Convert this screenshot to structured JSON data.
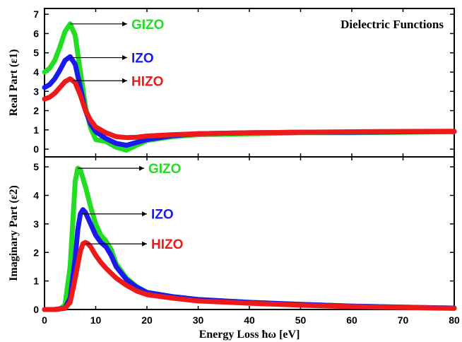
{
  "chart_data": [
    {
      "type": "line",
      "title": "Dielectric Functions",
      "ylabel": "Real Part (ε1)",
      "xlim": [
        0,
        80
      ],
      "ylim": [
        -0.4,
        7.3
      ],
      "yticks": [
        0,
        1,
        2,
        3,
        4,
        5,
        6,
        7
      ],
      "series": [
        {
          "name": "GIZO",
          "color": "#22dd22",
          "x": [
            0,
            1,
            2,
            3,
            4,
            5,
            6,
            7,
            8,
            9,
            10,
            12,
            14,
            16,
            18,
            20,
            25,
            30,
            40,
            50,
            60,
            70,
            80
          ],
          "y": [
            4.0,
            4.2,
            4.6,
            5.3,
            6.1,
            6.5,
            5.9,
            4.0,
            2.2,
            1.1,
            0.5,
            0.4,
            0.1,
            -0.05,
            0.2,
            0.45,
            0.65,
            0.75,
            0.8,
            0.85,
            0.85,
            0.88,
            0.9
          ]
        },
        {
          "name": "IZO",
          "color": "#1a1aee",
          "x": [
            0,
            1,
            2,
            3,
            4,
            5,
            6,
            7,
            8,
            9,
            10,
            12,
            14,
            16,
            18,
            20,
            25,
            30,
            40,
            50,
            60,
            70,
            80
          ],
          "y": [
            3.2,
            3.35,
            3.65,
            4.1,
            4.6,
            4.8,
            4.4,
            3.2,
            2.0,
            1.3,
            0.9,
            0.55,
            0.3,
            0.2,
            0.35,
            0.5,
            0.7,
            0.8,
            0.85,
            0.88,
            0.88,
            0.9,
            0.92
          ]
        },
        {
          "name": "HIZO",
          "color": "#ee1a1a",
          "x": [
            0,
            1,
            2,
            3,
            4,
            5,
            6,
            7,
            8,
            9,
            10,
            12,
            14,
            16,
            18,
            20,
            25,
            30,
            40,
            50,
            60,
            70,
            80
          ],
          "y": [
            2.6,
            2.7,
            2.9,
            3.2,
            3.5,
            3.65,
            3.45,
            2.8,
            2.0,
            1.5,
            1.15,
            0.85,
            0.65,
            0.6,
            0.62,
            0.68,
            0.75,
            0.8,
            0.85,
            0.88,
            0.9,
            0.92,
            0.93
          ]
        }
      ]
    },
    {
      "type": "line",
      "title": "",
      "ylabel": "Imaginary Part (ε2)",
      "xlabel": "Energy Loss ħω [eV]",
      "xlim": [
        0,
        80
      ],
      "ylim": [
        0,
        5.35
      ],
      "xticks": [
        0,
        10,
        20,
        30,
        40,
        50,
        60,
        70,
        80
      ],
      "yticks": [
        0,
        1,
        2,
        3,
        4,
        5
      ],
      "series": [
        {
          "name": "GIZO",
          "color": "#22dd22",
          "x": [
            0,
            2,
            3,
            4,
            5,
            5.5,
            6,
            6.5,
            7,
            8,
            9,
            10,
            11,
            12,
            13,
            14,
            16,
            18,
            20,
            25,
            30,
            40,
            50,
            60,
            70,
            80
          ],
          "y": [
            0,
            0,
            0.02,
            0.15,
            1.5,
            3.0,
            4.5,
            4.95,
            4.9,
            4.3,
            3.6,
            3.0,
            2.6,
            2.4,
            2.1,
            1.6,
            1.1,
            0.8,
            0.6,
            0.45,
            0.35,
            0.25,
            0.18,
            0.12,
            0.08,
            0.05
          ]
        },
        {
          "name": "IZO",
          "color": "#1a1aee",
          "x": [
            0,
            2,
            4,
            5,
            6,
            6.5,
            7,
            7.5,
            8,
            9,
            10,
            11,
            12,
            13,
            14,
            16,
            18,
            20,
            25,
            30,
            40,
            50,
            60,
            70,
            80
          ],
          "y": [
            0,
            0,
            0.05,
            0.4,
            1.8,
            2.8,
            3.35,
            3.5,
            3.4,
            3.0,
            2.6,
            2.35,
            2.2,
            1.9,
            1.5,
            1.05,
            0.78,
            0.6,
            0.45,
            0.35,
            0.25,
            0.18,
            0.12,
            0.08,
            0.05
          ]
        },
        {
          "name": "HIZO",
          "color": "#ee1a1a",
          "x": [
            0,
            2,
            4,
            5,
            6,
            7,
            7.5,
            8,
            8.5,
            9,
            10,
            11,
            12,
            14,
            16,
            18,
            20,
            25,
            30,
            40,
            50,
            60,
            70,
            80
          ],
          "y": [
            0,
            0,
            0.04,
            0.25,
            1.1,
            2.05,
            2.3,
            2.35,
            2.3,
            2.2,
            1.9,
            1.65,
            1.45,
            1.1,
            0.85,
            0.65,
            0.52,
            0.4,
            0.3,
            0.22,
            0.15,
            0.1,
            0.07,
            0.04
          ]
        }
      ]
    }
  ]
}
